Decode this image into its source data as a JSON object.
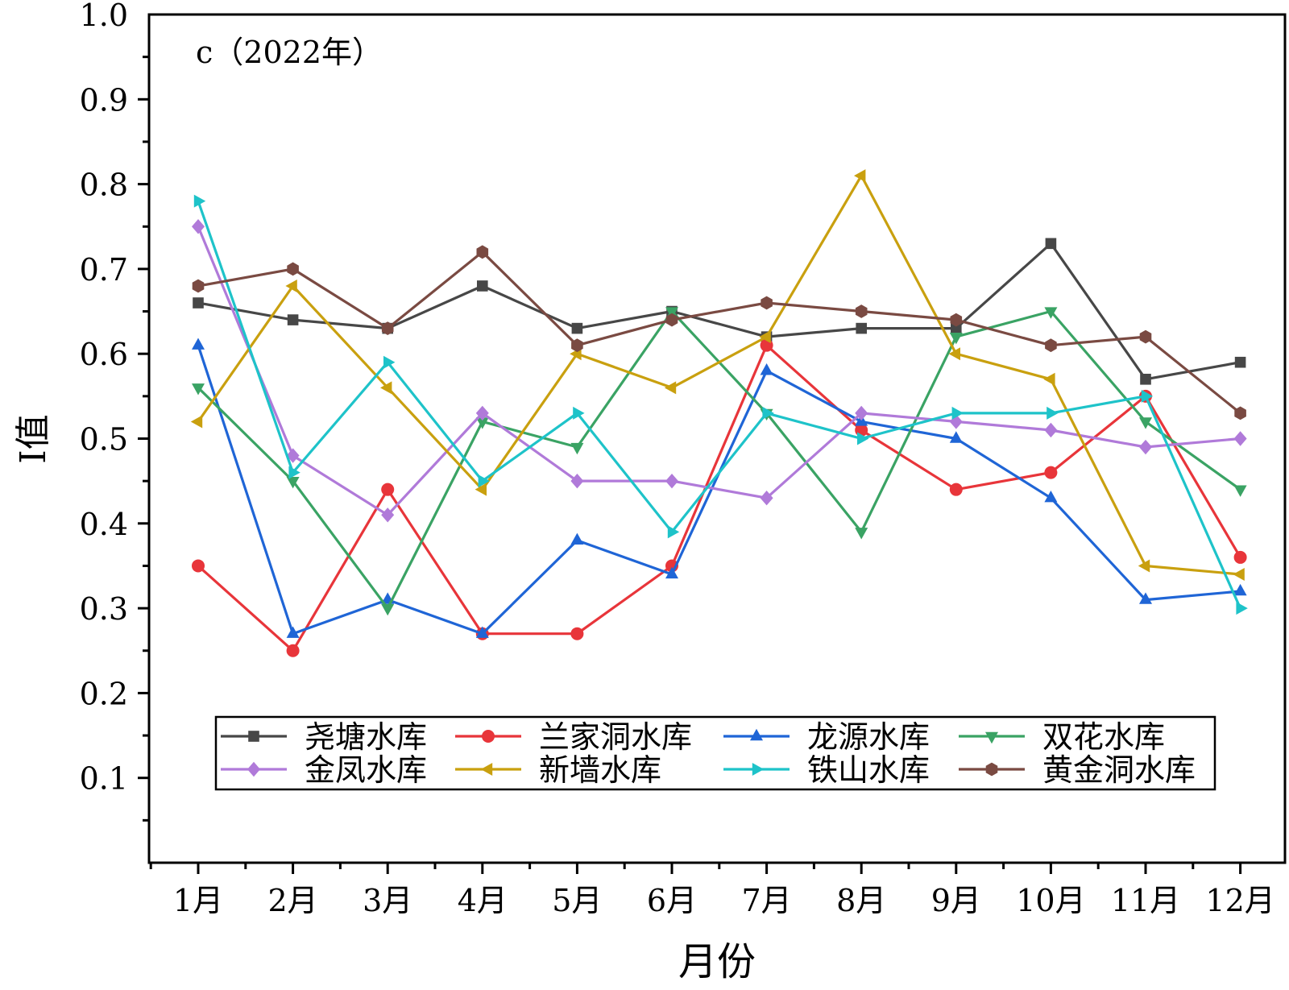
{
  "chart_data": {
    "type": "line",
    "panel_label": "c（2022年）",
    "xlabel": "月份",
    "ylabel": "I值",
    "categories": [
      "1月",
      "2月",
      "3月",
      "4月",
      "5月",
      "6月",
      "7月",
      "8月",
      "9月",
      "10月",
      "11月",
      "12月"
    ],
    "ylim": [
      0,
      1.0
    ],
    "yticks": [
      "0.1",
      "0.2",
      "0.3",
      "0.4",
      "0.5",
      "0.6",
      "0.7",
      "0.8",
      "0.9",
      "1.0"
    ],
    "grid": false,
    "legend_position": "bottom",
    "series": [
      {
        "name": "尧塘水库",
        "color": "#474747",
        "marker": "square",
        "values": [
          0.66,
          0.64,
          0.63,
          0.68,
          0.63,
          0.65,
          0.62,
          0.63,
          0.63,
          0.73,
          0.57,
          0.59
        ]
      },
      {
        "name": "兰家洞水库",
        "color": "#e8353a",
        "marker": "circle",
        "values": [
          0.35,
          0.25,
          0.44,
          0.27,
          0.27,
          0.35,
          0.61,
          0.51,
          0.44,
          0.46,
          0.55,
          0.36
        ]
      },
      {
        "name": "龙源水库",
        "color": "#1f65d6",
        "marker": "triangle-up",
        "values": [
          0.61,
          0.27,
          0.31,
          0.27,
          0.38,
          0.34,
          0.58,
          0.52,
          0.5,
          0.43,
          0.31,
          0.32
        ]
      },
      {
        "name": "双花水库",
        "color": "#3aa364",
        "marker": "triangle-down",
        "values": [
          0.56,
          0.45,
          0.3,
          0.52,
          0.49,
          0.65,
          0.53,
          0.39,
          0.62,
          0.65,
          0.52,
          0.44
        ]
      },
      {
        "name": "金凤水库",
        "color": "#b07ad9",
        "marker": "diamond",
        "values": [
          0.75,
          0.48,
          0.41,
          0.53,
          0.45,
          0.45,
          0.43,
          0.53,
          0.52,
          0.51,
          0.49,
          0.5
        ]
      },
      {
        "name": "新墙水库",
        "color": "#c9a00f",
        "marker": "triangle-left",
        "values": [
          0.52,
          0.68,
          0.56,
          0.44,
          0.6,
          0.56,
          0.62,
          0.81,
          0.6,
          0.57,
          0.35,
          0.34
        ]
      },
      {
        "name": "铁山水库",
        "color": "#1ec3c9",
        "marker": "triangle-right",
        "values": [
          0.78,
          0.46,
          0.59,
          0.45,
          0.53,
          0.39,
          0.53,
          0.5,
          0.53,
          0.53,
          0.55,
          0.3
        ]
      },
      {
        "name": "黄金洞水库",
        "color": "#7a4a42",
        "marker": "hexagon",
        "values": [
          0.68,
          0.7,
          0.63,
          0.72,
          0.61,
          0.64,
          0.66,
          0.65,
          0.64,
          0.61,
          0.62,
          0.53
        ]
      }
    ]
  }
}
